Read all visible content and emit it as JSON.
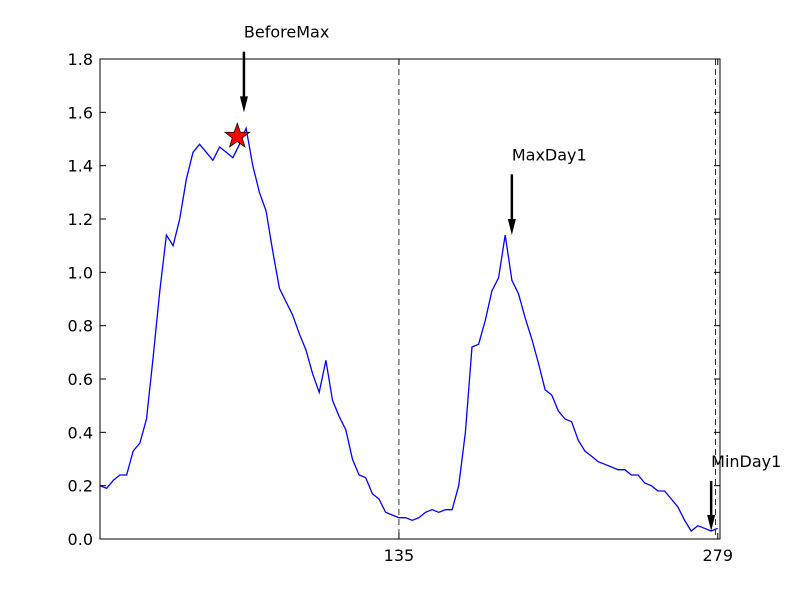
{
  "chart_data": {
    "type": "line",
    "title": "",
    "xlabel": "",
    "ylabel": "",
    "xlim": [
      0,
      280
    ],
    "ylim": [
      0.0,
      1.8
    ],
    "grid": false,
    "legend": "none",
    "line_color": "#0000ff",
    "yticks": [
      "0.0",
      "0.2",
      "0.4",
      "0.6",
      "0.8",
      "1.0",
      "1.2",
      "1.4",
      "1.6",
      "1.8"
    ],
    "xticks": [
      {
        "value": 135,
        "label": "135"
      },
      {
        "value": 279,
        "label": "279"
      }
    ],
    "vlines": [
      135,
      278
    ],
    "star_marker": {
      "x": 62,
      "y": 1.51,
      "color": "#ff0000"
    },
    "annotations": [
      {
        "label": "BeforeMax",
        "x": 65,
        "y": 1.6,
        "label_y": 1.88
      },
      {
        "label": "MaxDay1",
        "x": 186,
        "y": 1.14,
        "label_y": 1.42
      },
      {
        "label": "MinDay1",
        "x": 276,
        "y": 0.03,
        "label_y": 0.27
      }
    ],
    "series": [
      {
        "x": [
          0,
          3,
          6,
          9,
          12,
          15,
          18,
          21,
          24,
          27,
          30,
          33,
          36,
          39,
          42,
          45,
          48,
          51,
          54,
          57,
          60,
          63,
          66,
          69,
          72,
          75,
          78,
          81,
          84,
          87,
          90,
          93,
          96,
          99,
          102,
          105,
          108,
          111,
          114,
          117,
          120,
          123,
          126,
          129,
          132,
          135,
          138,
          141,
          144,
          147,
          150,
          153,
          156,
          159,
          162,
          165,
          168,
          171,
          174,
          177,
          180,
          183,
          186,
          189,
          192,
          195,
          198,
          201,
          204,
          207,
          210,
          213,
          216,
          219,
          222,
          225,
          228,
          231,
          234,
          237,
          240,
          243,
          246,
          249,
          252,
          255,
          258,
          261,
          264,
          267,
          270,
          273,
          276,
          279
        ],
        "y": [
          0.2,
          0.19,
          0.22,
          0.24,
          0.24,
          0.33,
          0.36,
          0.45,
          0.68,
          0.93,
          1.14,
          1.1,
          1.2,
          1.35,
          1.45,
          1.48,
          1.45,
          1.42,
          1.47,
          1.45,
          1.43,
          1.48,
          1.54,
          1.4,
          1.3,
          1.23,
          1.08,
          0.94,
          0.89,
          0.84,
          0.77,
          0.71,
          0.62,
          0.55,
          0.67,
          0.52,
          0.46,
          0.41,
          0.3,
          0.24,
          0.23,
          0.17,
          0.15,
          0.1,
          0.09,
          0.08,
          0.08,
          0.07,
          0.08,
          0.1,
          0.11,
          0.1,
          0.11,
          0.11,
          0.2,
          0.4,
          0.72,
          0.73,
          0.82,
          0.93,
          0.98,
          1.14,
          0.97,
          0.92,
          0.83,
          0.75,
          0.66,
          0.56,
          0.54,
          0.48,
          0.45,
          0.44,
          0.37,
          0.33,
          0.31,
          0.29,
          0.28,
          0.27,
          0.26,
          0.26,
          0.24,
          0.24,
          0.21,
          0.2,
          0.18,
          0.18,
          0.15,
          0.12,
          0.07,
          0.03,
          0.05,
          0.04,
          0.03,
          0.04
        ]
      }
    ]
  }
}
